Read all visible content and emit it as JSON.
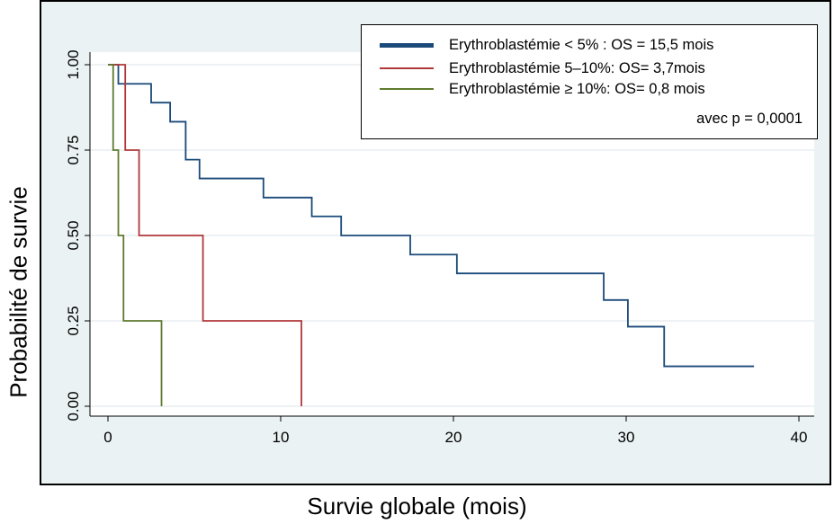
{
  "chart_data": {
    "type": "step-line",
    "xlabel": "Survie globale (mois)",
    "ylabel": "Probabilité de survie",
    "xlim": [
      0,
      40
    ],
    "ylim": [
      0,
      1
    ],
    "xticks": [
      "0",
      "10",
      "20",
      "30",
      "40"
    ],
    "yticks": [
      "0.00",
      "0.25",
      "0.50",
      "0.75",
      "1.00"
    ],
    "grid": true,
    "legend_position": "top-right",
    "legend_note": "avec p = 0,0001",
    "series": [
      {
        "name": "Erythroblastémie < 5% : OS = 15,5 mois",
        "color": "#1a4a7a",
        "x": [
          0,
          0.6,
          2.5,
          3.6,
          4.5,
          5.3,
          9.0,
          11.8,
          13.5,
          17.5,
          20.2,
          26.0,
          28.7,
          30.1,
          32.2,
          37.4
        ],
        "y": [
          1.0,
          0.944,
          0.889,
          0.833,
          0.722,
          0.667,
          0.611,
          0.556,
          0.5,
          0.444,
          0.389,
          0.389,
          0.311,
          0.233,
          0.117,
          0.117
        ]
      },
      {
        "name": "Erythroblastémie  5–10%: OS= 3,7mois",
        "color": "#b0383a",
        "x": [
          0,
          1.0,
          1.8,
          5.5,
          11.2,
          11.2
        ],
        "y": [
          1.0,
          0.75,
          0.5,
          0.25,
          0.25,
          0.0
        ]
      },
      {
        "name": "Erythroblastémie ≥ 10%: OS= 0,8 mois",
        "color": "#5f7a2e",
        "x": [
          0,
          0.3,
          0.6,
          0.9,
          3.1,
          3.1
        ],
        "y": [
          1.0,
          0.75,
          0.5,
          0.25,
          0.25,
          0.0
        ]
      }
    ]
  }
}
